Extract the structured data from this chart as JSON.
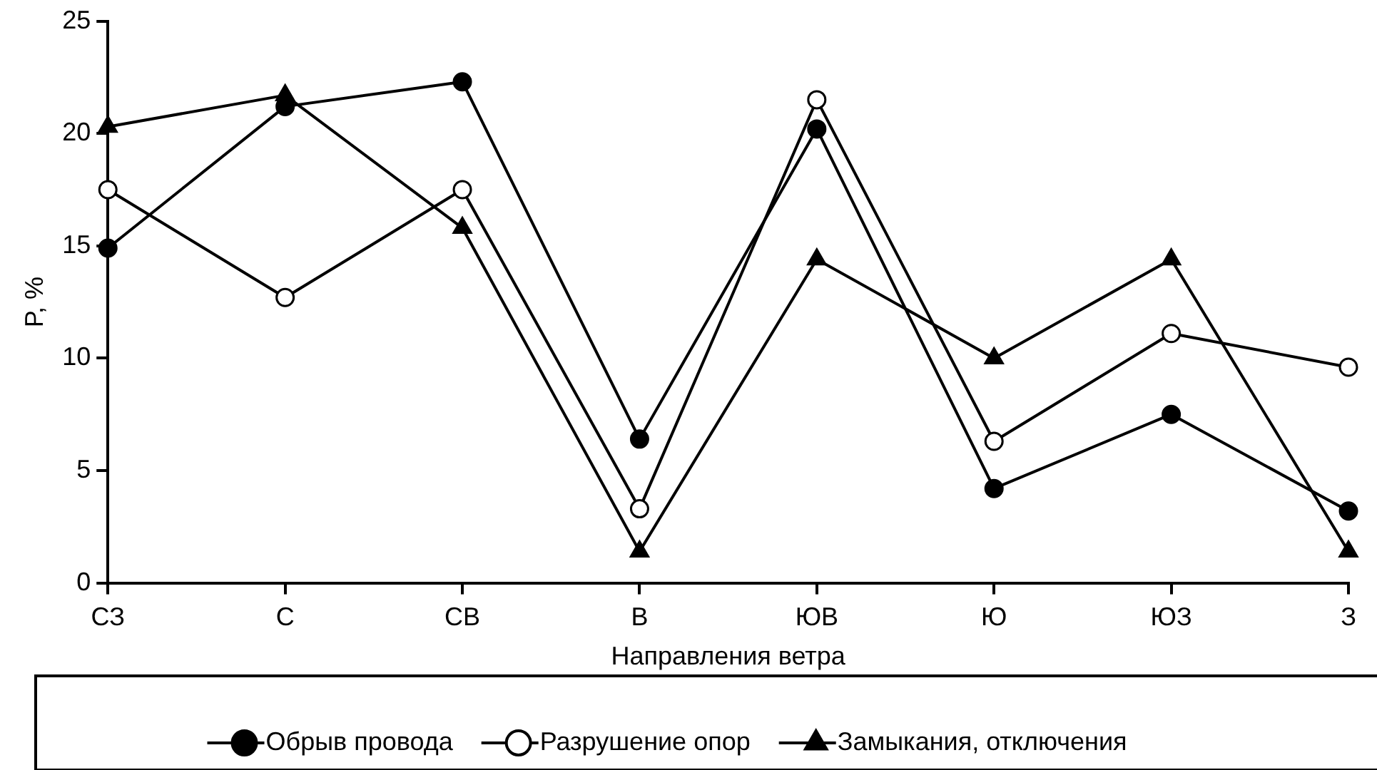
{
  "chart_data": {
    "type": "line",
    "xlabel": "Направления ветра",
    "ylabel": "P, %",
    "categories": [
      "СЗ",
      "С",
      "СВ",
      "В",
      "ЮВ",
      "Ю",
      "ЮЗ",
      "З"
    ],
    "series": [
      {
        "name": "Обрыв провода",
        "color": "#000000",
        "marker": "circle",
        "values": [
          14.9,
          21.2,
          22.3,
          6.4,
          20.2,
          4.2,
          7.5,
          3.2
        ]
      },
      {
        "name": "Разрушение опор",
        "color": "#000000",
        "marker": "circle",
        "values": [
          17.5,
          12.7,
          17.5,
          3.3,
          21.5,
          6.3,
          11.1,
          9.6
        ]
      },
      {
        "name": "Замыкания, отключения",
        "color": "#000000",
        "marker": "triangle",
        "values": [
          20.3,
          21.7,
          15.8,
          1.4,
          14.4,
          10.0,
          14.4,
          1.4
        ]
      }
    ],
    "ylim": [
      0,
      25
    ],
    "yticks": [
      0,
      5,
      10,
      15,
      20,
      25
    ],
    "grid": false,
    "legend": "bottom",
    "line_style": "solid"
  }
}
